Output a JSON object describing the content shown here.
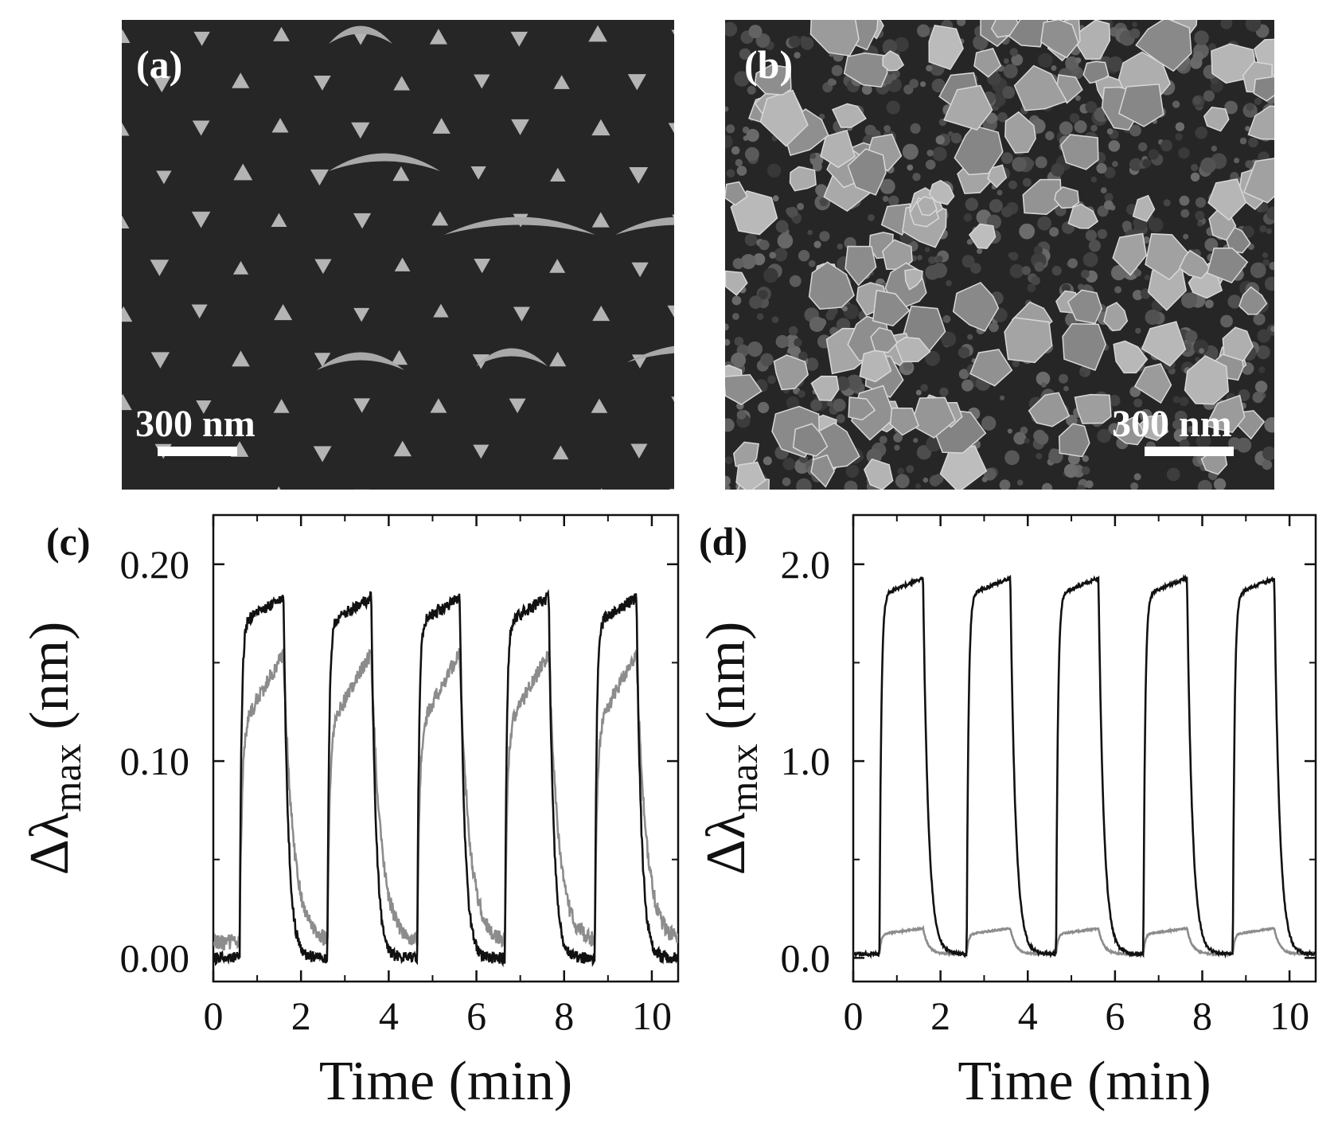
{
  "panels": {
    "a": {
      "label": "(a)",
      "scale_label": "300 nm"
    },
    "b": {
      "label": "(b)",
      "scale_label": "300 nm"
    }
  },
  "chart_data": [
    {
      "panel": "(c)",
      "type": "line",
      "xlabel": "Time (min)",
      "ylabel": "Δλ",
      "ylabel_sub": "max",
      "ylabel_unit": " (nm)",
      "xlim": [
        0,
        10.6
      ],
      "ylim": [
        -0.012,
        0.225
      ],
      "xticks": [
        0,
        2,
        4,
        6,
        8,
        10
      ],
      "xtick_labels": [
        "0",
        "2",
        "4",
        "6",
        "8",
        "10"
      ],
      "yticks": [
        0.0,
        0.1,
        0.2
      ],
      "ytick_labels": [
        "0.00",
        "0.10",
        "0.20"
      ],
      "series": [
        {
          "color": "#111111",
          "baseline": 0.0,
          "plateau_start": 0.17,
          "plateau_end": 0.183,
          "on_times": [
            0.6,
            2.6,
            4.65,
            6.65,
            8.7
          ],
          "off_times": [
            1.6,
            3.6,
            5.62,
            7.65,
            9.65
          ],
          "rise_tau": 0.04,
          "fall_tau": 0.11,
          "noise": 0.003
        },
        {
          "color": "#8c8c8c",
          "baseline": 0.008,
          "plateau_start": 0.115,
          "plateau_end": 0.155,
          "on_times": [
            0.6,
            2.6,
            4.65,
            6.65,
            8.7
          ],
          "off_times": [
            1.6,
            3.6,
            5.62,
            7.65,
            9.65
          ],
          "rise_tau": 0.05,
          "fall_tau": 0.22,
          "noise": 0.004
        }
      ]
    },
    {
      "panel": "(d)",
      "type": "line",
      "xlabel": "Time (min)",
      "ylabel": "Δλ",
      "ylabel_sub": "max",
      "ylabel_unit": " (nm)",
      "xlim": [
        0,
        10.6
      ],
      "ylim": [
        -0.12,
        2.25
      ],
      "xticks": [
        0,
        2,
        4,
        6,
        8,
        10
      ],
      "xtick_labels": [
        "0",
        "2",
        "4",
        "6",
        "8",
        "10"
      ],
      "yticks": [
        0.0,
        1.0,
        2.0
      ],
      "ytick_labels": [
        "0.0",
        "1.0",
        "2.0"
      ],
      "series": [
        {
          "color": "#111111",
          "baseline": 0.02,
          "plateau_start": 1.84,
          "plateau_end": 1.93,
          "on_times": [
            0.6,
            2.6,
            4.65,
            6.65,
            8.7
          ],
          "off_times": [
            1.6,
            3.6,
            5.62,
            7.65,
            9.65
          ],
          "rise_tau": 0.04,
          "fall_tau": 0.12,
          "noise": 0.008
        },
        {
          "color": "#8c8c8c",
          "baseline": 0.02,
          "plateau_start": 0.12,
          "plateau_end": 0.15,
          "on_times": [
            0.6,
            2.6,
            4.65,
            6.65,
            8.7
          ],
          "off_times": [
            1.6,
            3.6,
            5.62,
            7.65,
            9.65
          ],
          "rise_tau": 0.04,
          "fall_tau": 0.12,
          "noise": 0.004
        }
      ]
    }
  ]
}
